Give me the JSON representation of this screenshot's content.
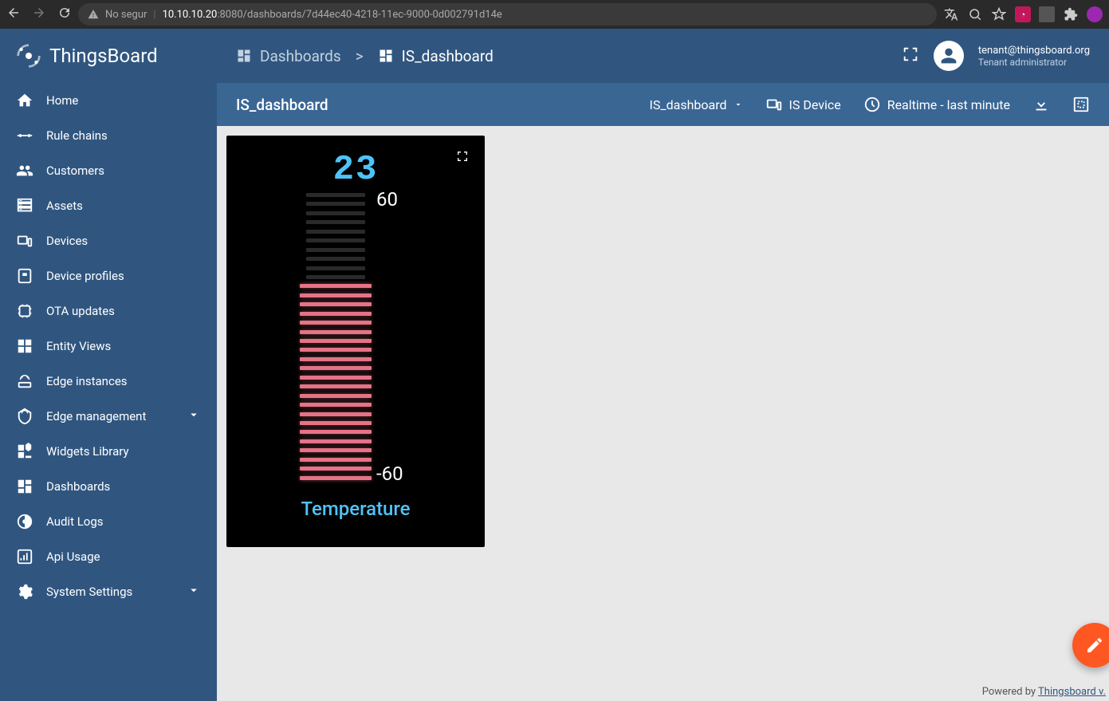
{
  "browser": {
    "security_label": "No segur",
    "url_host": "10.10.10.20",
    "url_path": ":8080/dashboards/7d44ec40-4218-11ec-9000-0d002791d14e"
  },
  "app_name": "ThingsBoard",
  "sidebar": {
    "items": [
      {
        "label": "Home",
        "icon": "home"
      },
      {
        "label": "Rule chains",
        "icon": "rulechains"
      },
      {
        "label": "Customers",
        "icon": "customers"
      },
      {
        "label": "Assets",
        "icon": "assets"
      },
      {
        "label": "Devices",
        "icon": "devices"
      },
      {
        "label": "Device profiles",
        "icon": "deviceprofiles"
      },
      {
        "label": "OTA updates",
        "icon": "ota"
      },
      {
        "label": "Entity Views",
        "icon": "entityviews"
      },
      {
        "label": "Edge instances",
        "icon": "edgeinstances"
      },
      {
        "label": "Edge management",
        "icon": "edgemgmt",
        "expandable": true
      },
      {
        "label": "Widgets Library",
        "icon": "widgets"
      },
      {
        "label": "Dashboards",
        "icon": "dashboards"
      },
      {
        "label": "Audit Logs",
        "icon": "auditlogs"
      },
      {
        "label": "Api Usage",
        "icon": "apiusage"
      },
      {
        "label": "System Settings",
        "icon": "settings",
        "expandable": true
      }
    ]
  },
  "breadcrumb": {
    "root": "Dashboards",
    "current": "IS_dashboard"
  },
  "user": {
    "email": "tenant@thingsboard.org",
    "role": "Tenant administrator"
  },
  "toolbar": {
    "title": "IS_dashboard",
    "dashboard_selector": "IS_dashboard",
    "entity": "IS Device",
    "timewindow": "Realtime - last minute"
  },
  "widget": {
    "title": "Temperature",
    "value": "23",
    "value_color": "#4fc3f7",
    "max": 60,
    "min": -60,
    "max_label": "60",
    "min_label": "-60",
    "bar_total": 32,
    "bar_on": 22,
    "bar_on_color": "#e57386",
    "bar_off_color": "#2a2a2a",
    "background": "#000000",
    "title_color": "#4fc3f7",
    "title_fontsize": 24,
    "value_fontsize": 44
  },
  "footer": {
    "prefix": "Powered by ",
    "link": "Thingsboard v."
  },
  "colors": {
    "sidebar_bg": "#305680",
    "toolbar_bg": "#3a6694",
    "content_bg": "#e8e8e8",
    "accent": "#4fc3f7",
    "fab": "#ff5722"
  }
}
